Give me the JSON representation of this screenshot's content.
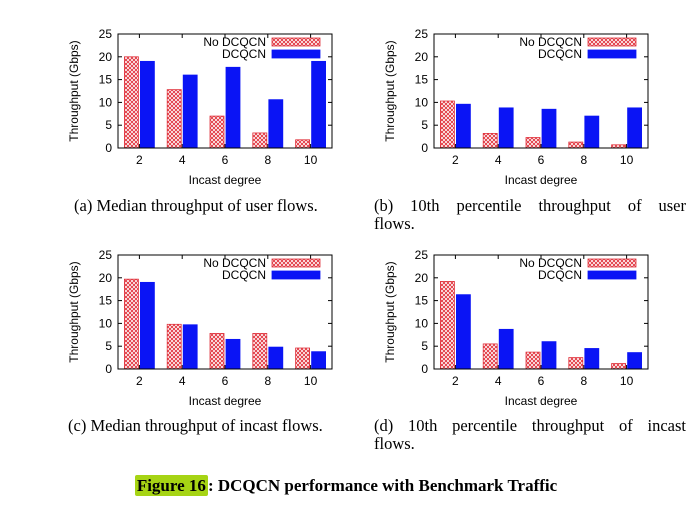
{
  "colors": {
    "no_dcqcn": "#e0303a",
    "dcqcn": "#0a14f5",
    "hatch_bg": "#ffffff"
  },
  "figure": {
    "label": "Figure 16",
    "title_rest": ": DCQCN performance with Benchmark Traffic"
  },
  "chart_data": [
    {
      "id": "a",
      "type": "bar",
      "caption": "(a) Median throughput of user flows.",
      "categories": [
        "2",
        "4",
        "6",
        "8",
        "10"
      ],
      "series": [
        {
          "name": "No DCQCN",
          "values": [
            20,
            12.8,
            7,
            3.3,
            1.8
          ]
        },
        {
          "name": "DCQCN",
          "values": [
            19,
            16,
            17.7,
            10.6,
            19
          ]
        }
      ],
      "xlabel": "Incast degree",
      "ylabel": "Throughput (Gbps)",
      "ylim": [
        0,
        25
      ],
      "yticks": [
        "0",
        "5",
        "10",
        "15",
        "20",
        "25"
      ],
      "legend": "top-right"
    },
    {
      "id": "b",
      "type": "bar",
      "caption_line1": "(b) 10th percentile throughput of user",
      "caption_line2": "flows.",
      "categories": [
        "2",
        "4",
        "6",
        "8",
        "10"
      ],
      "series": [
        {
          "name": "No DCQCN",
          "values": [
            10.3,
            3.2,
            2.3,
            1.3,
            0.7
          ]
        },
        {
          "name": "DCQCN",
          "values": [
            9.6,
            8.8,
            8.5,
            7,
            8.8
          ]
        }
      ],
      "xlabel": "Incast degree",
      "ylabel": "Throughput (Gbps)",
      "ylim": [
        0,
        25
      ],
      "yticks": [
        "0",
        "5",
        "10",
        "15",
        "20",
        "25"
      ],
      "legend": "top-right"
    },
    {
      "id": "c",
      "type": "bar",
      "caption": "(c) Median throughput of incast flows.",
      "categories": [
        "2",
        "4",
        "6",
        "8",
        "10"
      ],
      "series": [
        {
          "name": "No DCQCN",
          "values": [
            19.7,
            9.8,
            7.8,
            7.8,
            4.6
          ]
        },
        {
          "name": "DCQCN",
          "values": [
            19,
            9.7,
            6.5,
            4.8,
            3.8
          ]
        }
      ],
      "xlabel": "Incast degree",
      "ylabel": "Throughput (Gbps)",
      "ylim": [
        0,
        25
      ],
      "yticks": [
        "0",
        "5",
        "10",
        "15",
        "20",
        "25"
      ],
      "legend": "top-right"
    },
    {
      "id": "d",
      "type": "bar",
      "caption_line1": "(d) 10th percentile throughput of incast",
      "caption_line2": "flows.",
      "categories": [
        "2",
        "4",
        "6",
        "8",
        "10"
      ],
      "series": [
        {
          "name": "No DCQCN",
          "values": [
            19.2,
            5.5,
            3.7,
            2.5,
            1.2
          ]
        },
        {
          "name": "DCQCN",
          "values": [
            16.3,
            8.7,
            6,
            4.5,
            3.6
          ]
        }
      ],
      "xlabel": "Incast degree",
      "ylabel": "Throughput (Gbps)",
      "ylim": [
        0,
        25
      ],
      "yticks": [
        "0",
        "5",
        "10",
        "15",
        "20",
        "25"
      ],
      "legend": "top-right"
    }
  ]
}
